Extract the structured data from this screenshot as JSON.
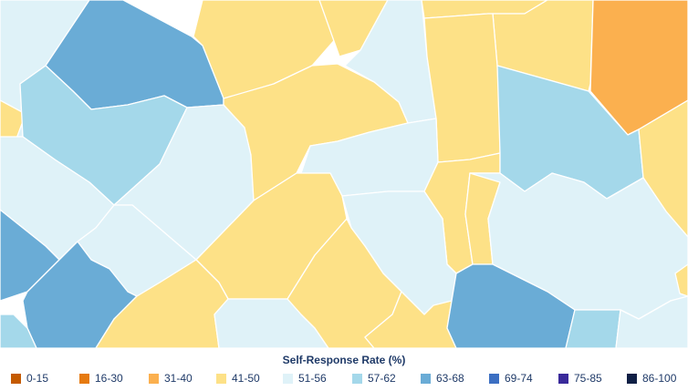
{
  "legend": {
    "title": "Self-Response Rate (%)",
    "items": [
      {
        "label": "0-15",
        "color": "#c45a00"
      },
      {
        "label": "16-30",
        "color": "#e67a10"
      },
      {
        "label": "31-40",
        "color": "#fbb04f"
      },
      {
        "label": "41-50",
        "color": "#fde187"
      },
      {
        "label": "51-56",
        "color": "#dff2f8"
      },
      {
        "label": "57-62",
        "color": "#a4d8ea"
      },
      {
        "label": "63-68",
        "color": "#6aacd6"
      },
      {
        "label": "69-74",
        "color": "#3c6fc2"
      },
      {
        "label": "75-85",
        "color": "#3a2a9a"
      },
      {
        "label": "86-100",
        "color": "#0f1f45"
      }
    ]
  },
  "map": {
    "regions": [
      {
        "name": "county-light-northwest",
        "category": "51-56"
      },
      {
        "name": "county-yellow-north-1",
        "category": "41-50"
      },
      {
        "name": "county-yellow-north-2",
        "category": "41-50"
      },
      {
        "name": "county-light-north-center",
        "category": "51-56"
      },
      {
        "name": "county-yellow-north-3",
        "category": "41-50"
      },
      {
        "name": "county-yellow-north-4",
        "category": "41-50"
      },
      {
        "name": "county-orange-northeast",
        "category": "31-40"
      },
      {
        "name": "county-blue-northwest",
        "category": "63-68"
      },
      {
        "name": "county-yellow-west-edge",
        "category": "41-50"
      },
      {
        "name": "county-sky-west",
        "category": "57-62"
      },
      {
        "name": "county-light-west-center",
        "category": "51-56"
      },
      {
        "name": "county-yellow-center-1",
        "category": "41-50"
      },
      {
        "name": "county-yellow-center-2",
        "category": "41-50"
      },
      {
        "name": "county-light-center",
        "category": "51-56"
      },
      {
        "name": "county-yellow-east-strip",
        "category": "41-50"
      },
      {
        "name": "county-sky-east",
        "category": "57-62"
      },
      {
        "name": "county-yellow-far-east",
        "category": "41-50"
      },
      {
        "name": "county-light-west",
        "category": "51-56"
      },
      {
        "name": "county-light-southwest-center",
        "category": "51-56"
      },
      {
        "name": "county-yellow-south-center",
        "category": "41-50"
      },
      {
        "name": "county-light-river",
        "category": "51-56"
      },
      {
        "name": "county-yellow-south-strip",
        "category": "41-50"
      },
      {
        "name": "county-light-southeast",
        "category": "51-56"
      },
      {
        "name": "county-blue-west-edge",
        "category": "63-68"
      },
      {
        "name": "county-blue-southwest",
        "category": "63-68"
      },
      {
        "name": "county-sky-southwest-edge",
        "category": "57-62"
      },
      {
        "name": "county-yellow-southwest",
        "category": "41-50"
      },
      {
        "name": "county-light-south",
        "category": "51-56"
      },
      {
        "name": "county-yellow-south-1",
        "category": "41-50"
      },
      {
        "name": "county-yellow-south-2",
        "category": "41-50"
      },
      {
        "name": "county-blue-south",
        "category": "63-68"
      },
      {
        "name": "county-sky-south-east",
        "category": "57-62"
      },
      {
        "name": "county-light-coast",
        "category": "51-56"
      },
      {
        "name": "county-yellow-coast",
        "category": "41-50"
      }
    ]
  }
}
